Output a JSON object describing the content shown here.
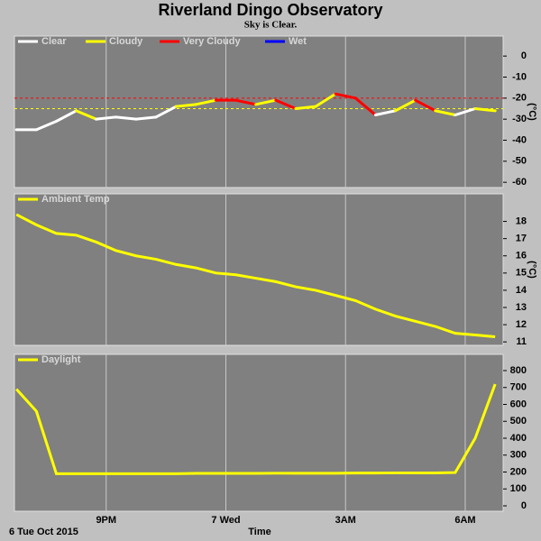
{
  "title": "Riverland Dingo Observatory",
  "subtitle": "Sky is Clear.",
  "x_axis": {
    "label": "Time",
    "date_label": "6 Tue Oct 2015",
    "xlim": [
      18.7,
      30.95
    ],
    "xticks": [
      {
        "value": 21,
        "label": "9PM"
      },
      {
        "value": 24,
        "label": "7 Wed"
      },
      {
        "value": 27,
        "label": "3AM"
      },
      {
        "value": 30,
        "label": "6AM"
      }
    ]
  },
  "chart_data": [
    {
      "type": "line",
      "unit": "(°C)",
      "x": [
        18.75,
        19.25,
        19.75,
        20.25,
        20.75,
        21.25,
        21.75,
        22.25,
        22.75,
        23.25,
        23.75,
        24.25,
        24.75,
        25.25,
        25.75,
        26.25,
        26.75,
        27.25,
        27.75,
        28.25,
        28.75,
        29.25,
        29.75,
        30.25,
        30.75
      ],
      "ylim": [
        -62.5,
        9.5
      ],
      "yticks": [
        0,
        -10,
        -20,
        -30,
        -40,
        -50,
        -60
      ],
      "thresholds": [
        {
          "value": -20,
          "color": "#ff0000"
        },
        {
          "value": -25,
          "color": "#ffff00"
        }
      ],
      "series": [
        {
          "name": "Clear",
          "color": "#ffffff",
          "values": [
            -35,
            -35,
            -31,
            null,
            -30,
            -29,
            -30,
            -29,
            null,
            null,
            null,
            null,
            null,
            null,
            null,
            null,
            null,
            null,
            -28,
            null,
            null,
            null,
            -28,
            null,
            null
          ]
        },
        {
          "name": "Cloudy",
          "color": "#ffff00",
          "values": [
            null,
            null,
            null,
            -26,
            null,
            null,
            null,
            null,
            -24,
            -23,
            null,
            null,
            -23,
            null,
            -25,
            -24,
            null,
            null,
            null,
            -26,
            null,
            -26,
            null,
            -25,
            -26
          ]
        },
        {
          "name": "Very Cloudy",
          "color": "#ff0000",
          "values": [
            null,
            null,
            null,
            null,
            null,
            null,
            null,
            null,
            null,
            null,
            -21,
            -21,
            null,
            -21,
            null,
            null,
            -18,
            -20,
            null,
            null,
            -21,
            null,
            null,
            null,
            null
          ]
        },
        {
          "name": "Wet",
          "color": "#0000ff",
          "values": [
            null,
            null,
            null,
            null,
            null,
            null,
            null,
            null,
            null,
            null,
            null,
            null,
            null,
            null,
            null,
            null,
            null,
            null,
            null,
            null,
            null,
            null,
            null,
            null,
            null
          ]
        }
      ]
    },
    {
      "type": "line",
      "unit": "(°C)",
      "x": [
        18.75,
        19.25,
        19.75,
        20.25,
        20.75,
        21.25,
        21.75,
        22.25,
        22.75,
        23.25,
        23.75,
        24.25,
        24.75,
        25.25,
        25.75,
        26.25,
        26.75,
        27.25,
        27.75,
        28.25,
        28.75,
        29.25,
        29.75,
        30.25,
        30.75
      ],
      "ylim": [
        10.8,
        19.6
      ],
      "yticks": [
        11,
        12,
        13,
        14,
        15,
        16,
        17,
        18
      ],
      "series": [
        {
          "name": "Ambient Temp",
          "color": "#ffff00",
          "values": [
            18.4,
            17.8,
            17.3,
            17.2,
            16.8,
            16.3,
            16.0,
            15.8,
            15.5,
            15.3,
            15.0,
            14.9,
            14.7,
            14.5,
            14.2,
            14.0,
            13.7,
            13.4,
            12.9,
            12.5,
            12.2,
            11.9,
            11.5,
            11.4,
            11.3
          ]
        }
      ]
    },
    {
      "type": "line",
      "x": [
        18.75,
        19.25,
        19.75,
        20.25,
        20.75,
        21.25,
        21.75,
        22.25,
        22.75,
        23.25,
        23.75,
        24.25,
        24.75,
        25.25,
        25.75,
        26.25,
        26.75,
        27.25,
        27.75,
        28.25,
        28.75,
        29.25,
        29.75,
        30.25,
        30.75
      ],
      "ylim": [
        -32,
        896
      ],
      "yticks": [
        0,
        100,
        200,
        300,
        400,
        500,
        600,
        700,
        800
      ],
      "series": [
        {
          "name": "Daylight",
          "color": "#ffff00",
          "values": [
            690,
            560,
            190,
            190,
            190,
            190,
            190,
            190,
            190,
            192,
            192,
            192,
            192,
            193,
            193,
            193,
            193,
            194,
            194,
            195,
            195,
            195,
            197,
            400,
            720
          ]
        }
      ]
    }
  ]
}
